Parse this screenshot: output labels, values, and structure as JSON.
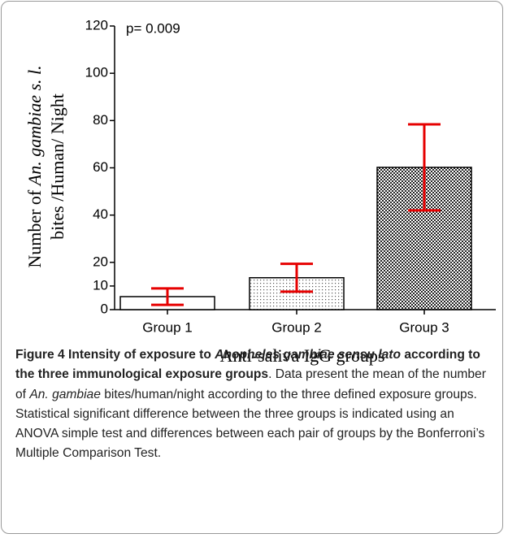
{
  "chart_data": {
    "type": "bar",
    "annotation": "p= 0.009",
    "ylabel": [
      "Number of ",
      "An. gambiae s. l.",
      "bites /Human/ Night"
    ],
    "xlabel": "Anti-saliva IgG groups",
    "categories": [
      "Group 1",
      "Group 2",
      "Group 3"
    ],
    "values": [
      5.5,
      13.5,
      60.2
    ],
    "errors": [
      3.5,
      5.9,
      18.2
    ],
    "fills": [
      "white",
      "dots",
      "checker"
    ],
    "error_color": "#e60000",
    "ylim": [
      0,
      120
    ],
    "yticks": [
      0,
      10,
      20,
      40,
      60,
      80,
      100,
      120
    ]
  },
  "caption": [
    "Figure 4 Intensity of exposure to ",
    "Anopheles gambiae sensu lato",
    " according to the three immunological exposure groups",
    ". Data present the mean of the number of ",
    "An. gambiae",
    " bites/human/night according to the three defined exposure groups. Statistical significant difference between the three groups is indicated using an ANOVA simple test and differences between each pair of groups by the Bonferroni’s Multiple Comparison Test."
  ]
}
